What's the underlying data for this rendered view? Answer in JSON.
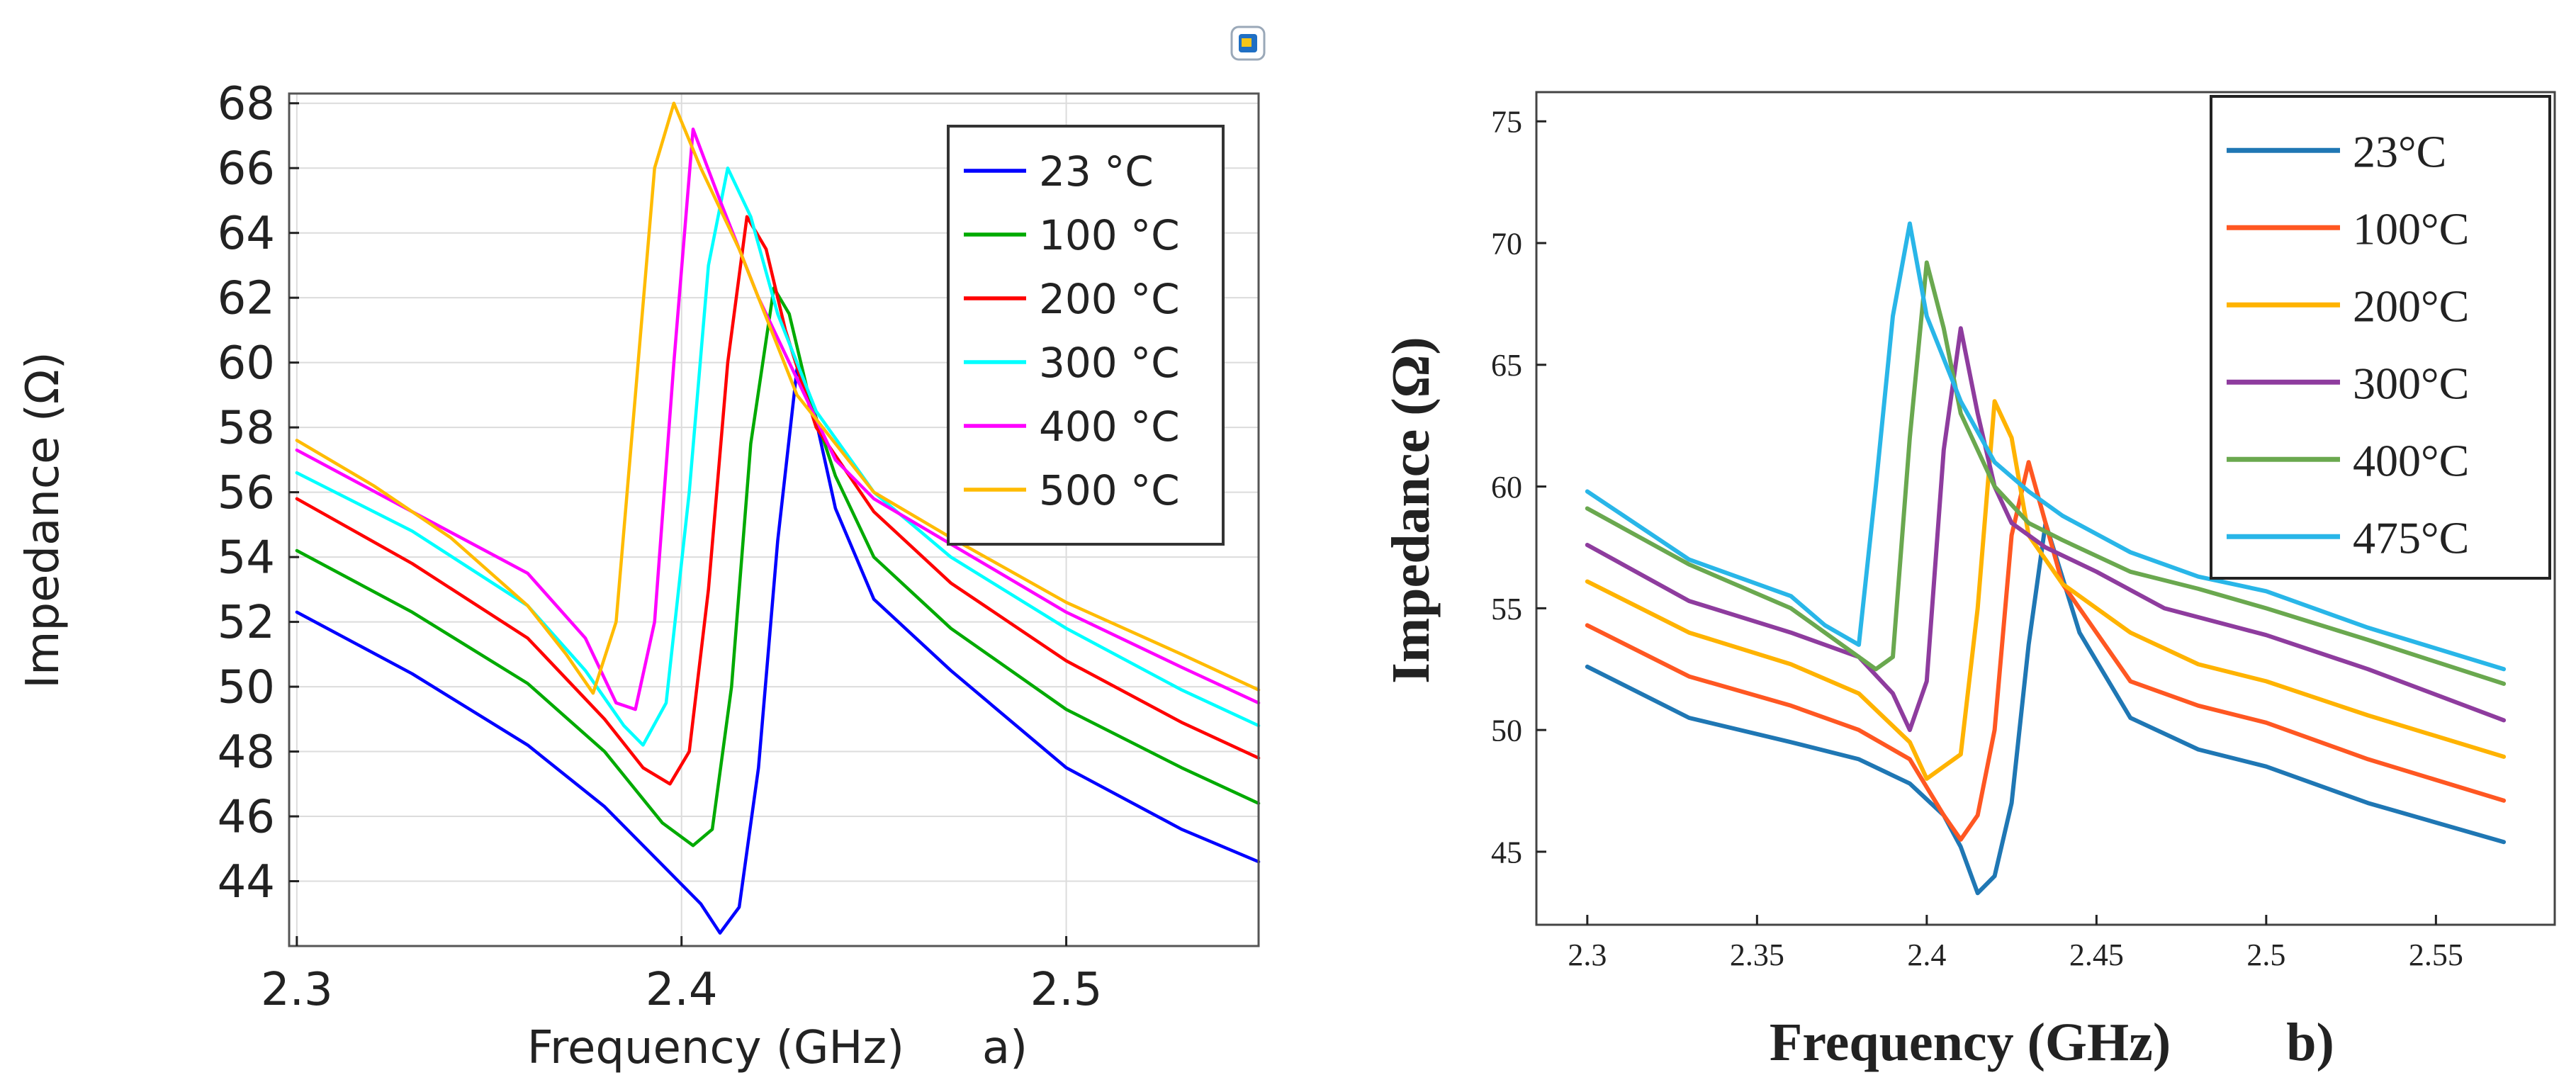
{
  "chart_data": [
    {
      "type": "line",
      "panel": "a",
      "xlabel": "Frequency (GHz)",
      "ylabel": "Impedance (Ω)",
      "panel_label": "a)",
      "xlim": [
        2.298,
        2.55
      ],
      "ylim": [
        42,
        68.3
      ],
      "xticks": [
        2.3,
        2.4,
        2.5
      ],
      "xtick_labels": [
        "2.3",
        "2.4",
        "2.5"
      ],
      "yticks": [
        44,
        46,
        48,
        50,
        52,
        54,
        56,
        58,
        60,
        62,
        64,
        66,
        68
      ],
      "ytick_labels": [
        "44",
        "46",
        "48",
        "50",
        "52",
        "54",
        "56",
        "58",
        "60",
        "62",
        "64",
        "66",
        "68"
      ],
      "grid": true,
      "legend_position": "top-right",
      "series": [
        {
          "name": "23 °C",
          "color": "#0000ff",
          "x": [
            2.3,
            2.33,
            2.36,
            2.38,
            2.395,
            2.405,
            2.41,
            2.415,
            2.42,
            2.425,
            2.43,
            2.435,
            2.44,
            2.45,
            2.47,
            2.5,
            2.53,
            2.55
          ],
          "y": [
            52.3,
            50.4,
            48.2,
            46.3,
            44.5,
            43.3,
            42.4,
            43.2,
            47.5,
            54.5,
            59.8,
            58.2,
            55.5,
            52.7,
            50.5,
            47.5,
            45.6,
            44.6
          ]
        },
        {
          "name": "100 °C",
          "color": "#00aa00",
          "x": [
            2.3,
            2.33,
            2.36,
            2.38,
            2.395,
            2.403,
            2.408,
            2.413,
            2.418,
            2.424,
            2.428,
            2.433,
            2.44,
            2.45,
            2.47,
            2.5,
            2.53,
            2.55
          ],
          "y": [
            54.2,
            52.3,
            50.1,
            48.0,
            45.8,
            45.1,
            45.6,
            50.0,
            57.5,
            62.3,
            61.5,
            59.0,
            56.5,
            54.0,
            51.8,
            49.3,
            47.5,
            46.4
          ]
        },
        {
          "name": "200 °C",
          "color": "#ff0000",
          "x": [
            2.3,
            2.33,
            2.36,
            2.38,
            2.39,
            2.397,
            2.402,
            2.407,
            2.412,
            2.417,
            2.422,
            2.427,
            2.435,
            2.45,
            2.47,
            2.5,
            2.53,
            2.55
          ],
          "y": [
            55.8,
            53.8,
            51.5,
            49.0,
            47.5,
            47.0,
            48.0,
            53.0,
            60.0,
            64.5,
            63.5,
            61.0,
            58.0,
            55.4,
            53.2,
            50.8,
            48.9,
            47.8
          ]
        },
        {
          "name": "300 °C",
          "color": "#00ffff",
          "x": [
            2.3,
            2.33,
            2.36,
            2.375,
            2.385,
            2.39,
            2.396,
            2.402,
            2.407,
            2.412,
            2.418,
            2.425,
            2.435,
            2.45,
            2.47,
            2.5,
            2.53,
            2.55
          ],
          "y": [
            56.6,
            54.8,
            52.5,
            50.5,
            48.8,
            48.2,
            49.5,
            56.0,
            63.0,
            66.0,
            64.5,
            61.5,
            58.5,
            56.0,
            54.0,
            51.8,
            49.9,
            48.8
          ]
        },
        {
          "name": "400 °C",
          "color": "#ff00ff",
          "x": [
            2.3,
            2.33,
            2.36,
            2.375,
            2.383,
            2.388,
            2.393,
            2.398,
            2.403,
            2.41,
            2.42,
            2.43,
            2.44,
            2.45,
            2.47,
            2.5,
            2.53,
            2.55
          ],
          "y": [
            57.3,
            55.4,
            53.5,
            51.5,
            49.5,
            49.3,
            52.0,
            60.0,
            67.2,
            65.0,
            62.0,
            59.5,
            57.0,
            55.8,
            54.4,
            52.3,
            50.6,
            49.5
          ]
        },
        {
          "name": "500 °C",
          "color": "#ffbb00",
          "x": [
            2.3,
            2.32,
            2.34,
            2.36,
            2.37,
            2.377,
            2.383,
            2.388,
            2.393,
            2.398,
            2.405,
            2.415,
            2.43,
            2.45,
            2.47,
            2.5,
            2.53,
            2.55
          ],
          "y": [
            57.6,
            56.2,
            54.6,
            52.5,
            51.0,
            49.8,
            52.0,
            59.0,
            66.0,
            68.0,
            66.0,
            63.5,
            59.0,
            56.0,
            54.6,
            52.6,
            51.0,
            49.9
          ]
        }
      ]
    },
    {
      "type": "line",
      "panel": "b",
      "xlabel": "Frequency (GHz)",
      "ylabel": "Impedance (Ω)",
      "panel_label": "b)",
      "xlim": [
        2.285,
        2.585
      ],
      "ylim": [
        42,
        76.2
      ],
      "xticks": [
        2.3,
        2.35,
        2.4,
        2.45,
        2.5,
        2.55
      ],
      "xtick_labels": [
        "2.3",
        "2.35",
        "2.4",
        "2.45",
        "2.5",
        "2.55"
      ],
      "yticks": [
        45,
        50,
        55,
        60,
        65,
        70,
        75
      ],
      "ytick_labels": [
        "45",
        "50",
        "55",
        "60",
        "65",
        "70",
        "75"
      ],
      "grid": false,
      "legend_position": "top-right",
      "series": [
        {
          "name": "23°C",
          "color": "#1f77b4",
          "x": [
            2.3,
            2.33,
            2.36,
            2.38,
            2.395,
            2.405,
            2.41,
            2.415,
            2.42,
            2.425,
            2.43,
            2.435,
            2.445,
            2.46,
            2.48,
            2.5,
            2.53,
            2.57
          ],
          "y": [
            52.6,
            50.5,
            49.5,
            48.8,
            47.8,
            46.5,
            45.2,
            43.3,
            44.0,
            47.0,
            53.5,
            58.5,
            54.0,
            50.5,
            49.2,
            48.5,
            47.0,
            45.4
          ]
        },
        {
          "name": "100°C",
          "color": "#ff5722",
          "x": [
            2.3,
            2.33,
            2.36,
            2.38,
            2.395,
            2.405,
            2.41,
            2.415,
            2.42,
            2.425,
            2.43,
            2.44,
            2.46,
            2.48,
            2.5,
            2.53,
            2.57
          ],
          "y": [
            54.3,
            52.2,
            51.0,
            50.0,
            48.8,
            46.5,
            45.5,
            46.5,
            50.0,
            58.0,
            61.0,
            56.0,
            52.0,
            51.0,
            50.3,
            48.8,
            47.1
          ]
        },
        {
          "name": "200°C",
          "color": "#ffb300",
          "x": [
            2.3,
            2.33,
            2.36,
            2.38,
            2.395,
            2.4,
            2.405,
            2.41,
            2.415,
            2.42,
            2.425,
            2.43,
            2.44,
            2.46,
            2.48,
            2.5,
            2.53,
            2.57
          ],
          "y": [
            56.1,
            54.0,
            52.7,
            51.5,
            49.5,
            48.0,
            48.5,
            49.0,
            55.0,
            63.5,
            62.0,
            58.0,
            56.0,
            54.0,
            52.7,
            52.0,
            50.6,
            48.9
          ]
        },
        {
          "name": "300°C",
          "color": "#8e3c9e",
          "x": [
            2.3,
            2.33,
            2.36,
            2.38,
            2.39,
            2.395,
            2.4,
            2.405,
            2.41,
            2.415,
            2.42,
            2.425,
            2.435,
            2.45,
            2.47,
            2.5,
            2.53,
            2.57
          ],
          "y": [
            57.6,
            55.3,
            54.0,
            53.0,
            51.5,
            50.0,
            52.0,
            61.5,
            66.5,
            63.0,
            60.0,
            58.5,
            57.5,
            56.5,
            55.0,
            53.9,
            52.5,
            50.4
          ]
        },
        {
          "name": "400°C",
          "color": "#6aa84f",
          "x": [
            2.3,
            2.33,
            2.36,
            2.375,
            2.385,
            2.39,
            2.395,
            2.4,
            2.405,
            2.41,
            2.42,
            2.43,
            2.44,
            2.46,
            2.48,
            2.5,
            2.53,
            2.57
          ],
          "y": [
            59.1,
            56.8,
            55.0,
            53.5,
            52.5,
            53.0,
            62.0,
            69.2,
            66.5,
            63.0,
            60.0,
            58.5,
            57.8,
            56.5,
            55.8,
            55.0,
            53.7,
            51.9
          ]
        },
        {
          "name": "475°C",
          "color": "#29b6e8",
          "x": [
            2.3,
            2.33,
            2.36,
            2.37,
            2.38,
            2.385,
            2.39,
            2.395,
            2.4,
            2.41,
            2.42,
            2.43,
            2.44,
            2.46,
            2.48,
            2.5,
            2.53,
            2.57
          ],
          "y": [
            59.8,
            57.0,
            55.5,
            54.3,
            53.5,
            60.0,
            67.0,
            70.8,
            67.0,
            63.5,
            61.0,
            59.8,
            58.8,
            57.3,
            56.3,
            55.7,
            54.2,
            52.5
          ]
        }
      ]
    }
  ]
}
